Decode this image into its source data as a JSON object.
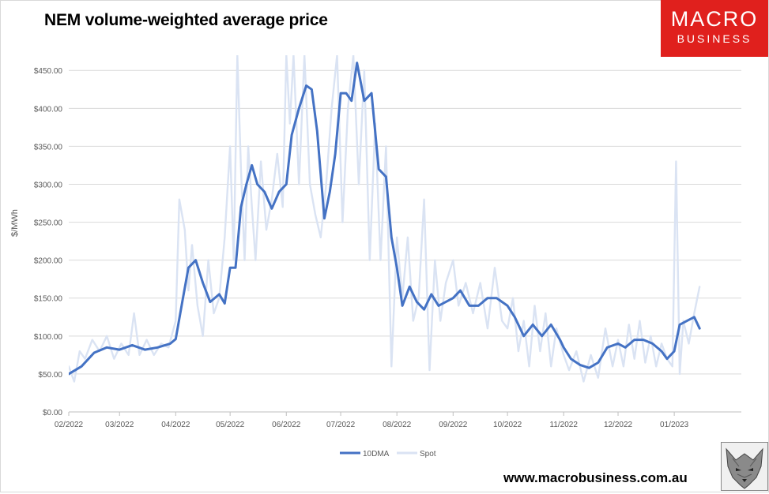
{
  "header": {
    "title": "NEM volume-weighted average price"
  },
  "logo": {
    "line1": "MACRO",
    "line2": "BUSINESS"
  },
  "footer": {
    "url": "www.macrobusiness.com.au"
  },
  "colors": {
    "series_10dma": "#4472c4",
    "series_spot": "#dae3f3",
    "logo_red": "#e0201d",
    "grid": "#d9d9d9"
  },
  "chart_data": {
    "type": "line",
    "title": "NEM volume-weighted average price",
    "xlabel": "",
    "ylabel": "$/MWh",
    "ylim": [
      0,
      470
    ],
    "yticks": [
      "$0.00",
      "$50.00",
      "$100.00",
      "$150.00",
      "$200.00",
      "$250.00",
      "$300.00",
      "$350.00",
      "$400.00",
      "$450.00"
    ],
    "xticks": [
      "02/2022",
      "03/2022",
      "04/2022",
      "05/2022",
      "06/2022",
      "07/2022",
      "08/2022",
      "09/2022",
      "10/2022",
      "11/2022",
      "12/2022",
      "01/2023"
    ],
    "x_start": "2022-02-01",
    "grid": true,
    "legend_position": "bottom",
    "series": [
      {
        "name": "10DMA",
        "points": [
          [
            "2022-02-01",
            50
          ],
          [
            "2022-02-08",
            60
          ],
          [
            "2022-02-15",
            78
          ],
          [
            "2022-02-22",
            85
          ],
          [
            "2022-03-01",
            82
          ],
          [
            "2022-03-08",
            88
          ],
          [
            "2022-03-15",
            82
          ],
          [
            "2022-03-22",
            85
          ],
          [
            "2022-03-29",
            90
          ],
          [
            "2022-04-01",
            96
          ],
          [
            "2022-04-05",
            150
          ],
          [
            "2022-04-08",
            190
          ],
          [
            "2022-04-12",
            200
          ],
          [
            "2022-04-16",
            170
          ],
          [
            "2022-04-20",
            145
          ],
          [
            "2022-04-25",
            155
          ],
          [
            "2022-04-28",
            143
          ],
          [
            "2022-05-01",
            190
          ],
          [
            "2022-05-04",
            190
          ],
          [
            "2022-05-07",
            270
          ],
          [
            "2022-05-10",
            300
          ],
          [
            "2022-05-13",
            325
          ],
          [
            "2022-05-16",
            300
          ],
          [
            "2022-05-20",
            290
          ],
          [
            "2022-05-24",
            268
          ],
          [
            "2022-05-28",
            290
          ],
          [
            "2022-06-01",
            300
          ],
          [
            "2022-06-04",
            365
          ],
          [
            "2022-06-08",
            400
          ],
          [
            "2022-06-12",
            430
          ],
          [
            "2022-06-15",
            425
          ],
          [
            "2022-06-18",
            370
          ],
          [
            "2022-06-22",
            255
          ],
          [
            "2022-06-25",
            290
          ],
          [
            "2022-06-28",
            340
          ],
          [
            "2022-07-01",
            420
          ],
          [
            "2022-07-04",
            420
          ],
          [
            "2022-07-07",
            410
          ],
          [
            "2022-07-10",
            460
          ],
          [
            "2022-07-14",
            410
          ],
          [
            "2022-07-18",
            420
          ],
          [
            "2022-07-22",
            320
          ],
          [
            "2022-07-26",
            310
          ],
          [
            "2022-07-29",
            230
          ],
          [
            "2022-08-01",
            190
          ],
          [
            "2022-08-04",
            140
          ],
          [
            "2022-08-08",
            165
          ],
          [
            "2022-08-12",
            145
          ],
          [
            "2022-08-16",
            135
          ],
          [
            "2022-08-20",
            155
          ],
          [
            "2022-08-24",
            140
          ],
          [
            "2022-08-28",
            145
          ],
          [
            "2022-09-01",
            150
          ],
          [
            "2022-09-05",
            160
          ],
          [
            "2022-09-10",
            140
          ],
          [
            "2022-09-15",
            140
          ],
          [
            "2022-09-20",
            150
          ],
          [
            "2022-09-25",
            150
          ],
          [
            "2022-10-01",
            140
          ],
          [
            "2022-10-05",
            125
          ],
          [
            "2022-10-10",
            100
          ],
          [
            "2022-10-15",
            115
          ],
          [
            "2022-10-20",
            100
          ],
          [
            "2022-10-25",
            115
          ],
          [
            "2022-10-30",
            95
          ],
          [
            "2022-11-01",
            85
          ],
          [
            "2022-11-05",
            70
          ],
          [
            "2022-11-10",
            62
          ],
          [
            "2022-11-15",
            58
          ],
          [
            "2022-11-20",
            65
          ],
          [
            "2022-11-25",
            85
          ],
          [
            "2022-12-01",
            90
          ],
          [
            "2022-12-05",
            85
          ],
          [
            "2022-12-10",
            95
          ],
          [
            "2022-12-15",
            95
          ],
          [
            "2022-12-20",
            90
          ],
          [
            "2022-12-25",
            80
          ],
          [
            "2022-12-28",
            70
          ],
          [
            "2023-01-01",
            80
          ],
          [
            "2023-01-04",
            115
          ],
          [
            "2023-01-08",
            120
          ],
          [
            "2023-01-12",
            125
          ],
          [
            "2023-01-15",
            110
          ]
        ]
      },
      {
        "name": "Spot",
        "points": [
          [
            "2022-02-01",
            60
          ],
          [
            "2022-02-04",
            40
          ],
          [
            "2022-02-07",
            80
          ],
          [
            "2022-02-10",
            70
          ],
          [
            "2022-02-14",
            95
          ],
          [
            "2022-02-18",
            80
          ],
          [
            "2022-02-22",
            100
          ],
          [
            "2022-02-26",
            70
          ],
          [
            "2022-03-02",
            90
          ],
          [
            "2022-03-06",
            75
          ],
          [
            "2022-03-09",
            130
          ],
          [
            "2022-03-12",
            75
          ],
          [
            "2022-03-16",
            95
          ],
          [
            "2022-03-20",
            75
          ],
          [
            "2022-03-24",
            90
          ],
          [
            "2022-03-28",
            85
          ],
          [
            "2022-04-01",
            120
          ],
          [
            "2022-04-03",
            280
          ],
          [
            "2022-04-06",
            240
          ],
          [
            "2022-04-08",
            160
          ],
          [
            "2022-04-10",
            220
          ],
          [
            "2022-04-13",
            140
          ],
          [
            "2022-04-16",
            100
          ],
          [
            "2022-04-19",
            200
          ],
          [
            "2022-04-22",
            130
          ],
          [
            "2022-04-25",
            150
          ],
          [
            "2022-04-28",
            230
          ],
          [
            "2022-05-01",
            350
          ],
          [
            "2022-05-03",
            200
          ],
          [
            "2022-05-05",
            470
          ],
          [
            "2022-05-07",
            320
          ],
          [
            "2022-05-09",
            200
          ],
          [
            "2022-05-11",
            350
          ],
          [
            "2022-05-13",
            270
          ],
          [
            "2022-05-15",
            200
          ],
          [
            "2022-05-18",
            330
          ],
          [
            "2022-05-21",
            240
          ],
          [
            "2022-05-24",
            280
          ],
          [
            "2022-05-27",
            340
          ],
          [
            "2022-05-30",
            270
          ],
          [
            "2022-06-01",
            470
          ],
          [
            "2022-06-03",
            380
          ],
          [
            "2022-06-05",
            470
          ],
          [
            "2022-06-08",
            300
          ],
          [
            "2022-06-11",
            470
          ],
          [
            "2022-06-14",
            300
          ],
          [
            "2022-06-17",
            260
          ],
          [
            "2022-06-20",
            230
          ],
          [
            "2022-06-23",
            300
          ],
          [
            "2022-06-26",
            400
          ],
          [
            "2022-06-29",
            470
          ],
          [
            "2022-07-02",
            250
          ],
          [
            "2022-07-05",
            400
          ],
          [
            "2022-07-08",
            470
          ],
          [
            "2022-07-11",
            300
          ],
          [
            "2022-07-14",
            450
          ],
          [
            "2022-07-17",
            200
          ],
          [
            "2022-07-20",
            380
          ],
          [
            "2022-07-23",
            200
          ],
          [
            "2022-07-26",
            350
          ],
          [
            "2022-07-29",
            60
          ],
          [
            "2022-08-01",
            230
          ],
          [
            "2022-08-04",
            150
          ],
          [
            "2022-08-07",
            230
          ],
          [
            "2022-08-10",
            120
          ],
          [
            "2022-08-13",
            150
          ],
          [
            "2022-08-16",
            280
          ],
          [
            "2022-08-19",
            55
          ],
          [
            "2022-08-22",
            200
          ],
          [
            "2022-08-25",
            120
          ],
          [
            "2022-08-28",
            170
          ],
          [
            "2022-09-01",
            200
          ],
          [
            "2022-09-04",
            140
          ],
          [
            "2022-09-08",
            170
          ],
          [
            "2022-09-12",
            130
          ],
          [
            "2022-09-16",
            170
          ],
          [
            "2022-09-20",
            110
          ],
          [
            "2022-09-24",
            190
          ],
          [
            "2022-09-28",
            120
          ],
          [
            "2022-10-01",
            110
          ],
          [
            "2022-10-04",
            150
          ],
          [
            "2022-10-07",
            80
          ],
          [
            "2022-10-10",
            120
          ],
          [
            "2022-10-13",
            60
          ],
          [
            "2022-10-16",
            140
          ],
          [
            "2022-10-19",
            80
          ],
          [
            "2022-10-22",
            130
          ],
          [
            "2022-10-25",
            60
          ],
          [
            "2022-10-28",
            110
          ],
          [
            "2022-11-01",
            75
          ],
          [
            "2022-11-04",
            55
          ],
          [
            "2022-11-08",
            80
          ],
          [
            "2022-11-12",
            40
          ],
          [
            "2022-11-16",
            75
          ],
          [
            "2022-11-20",
            45
          ],
          [
            "2022-11-24",
            110
          ],
          [
            "2022-11-28",
            60
          ],
          [
            "2022-12-01",
            95
          ],
          [
            "2022-12-04",
            60
          ],
          [
            "2022-12-07",
            115
          ],
          [
            "2022-12-10",
            70
          ],
          [
            "2022-12-13",
            120
          ],
          [
            "2022-12-16",
            65
          ],
          [
            "2022-12-19",
            100
          ],
          [
            "2022-12-22",
            60
          ],
          [
            "2022-12-25",
            90
          ],
          [
            "2022-12-28",
            70
          ],
          [
            "2022-12-31",
            60
          ],
          [
            "2023-01-02",
            330
          ],
          [
            "2023-01-04",
            50
          ],
          [
            "2023-01-06",
            120
          ],
          [
            "2023-01-09",
            90
          ],
          [
            "2023-01-12",
            130
          ],
          [
            "2023-01-15",
            165
          ]
        ]
      }
    ]
  }
}
